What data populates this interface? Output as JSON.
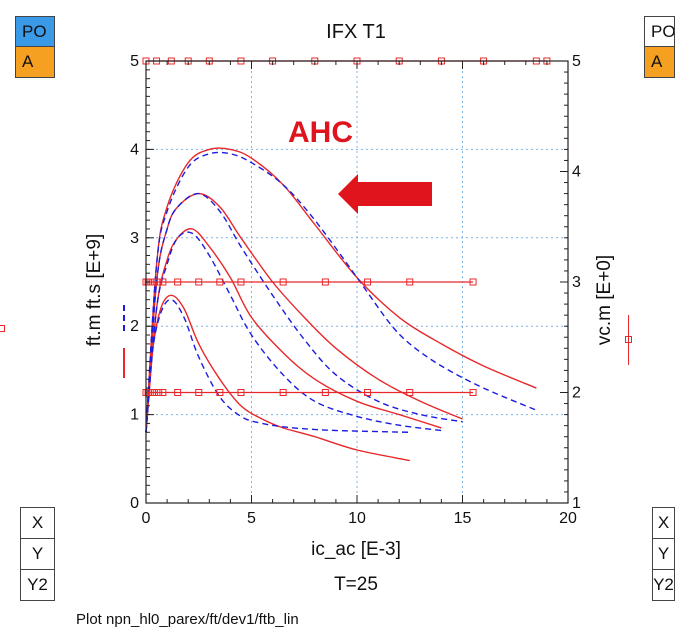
{
  "side_left": {
    "po_label": "PO",
    "a_label": "A",
    "x_label": "X",
    "y_label": "Y",
    "y2_label": "Y2"
  },
  "side_right": {
    "po_label": "PO",
    "a_label": "A",
    "x_label": "X",
    "y_label": "Y",
    "y2_label": "Y2"
  },
  "colors": {
    "po_bg": "#3b9ae8",
    "a_bg": "#f5a020",
    "red": "#e8282a",
    "blue": "#1c1ce0",
    "grid": "#7fb2e6",
    "arrow": "#e0141c"
  },
  "footer": {
    "plot_path": "Plot npn_hl0_parex/ft/dev1/ftb_lin"
  },
  "chart_data": {
    "type": "line",
    "title": "IFX  T1",
    "xlabel": "ic_ac  [E-3]",
    "subtitle": "T=25",
    "ylabel_left": "ft.m  ft.s  [E+9]",
    "ylabel_right": "vc.m  [E+0]",
    "xlim": [
      0,
      20
    ],
    "ylim_left": [
      0,
      5
    ],
    "ylim_right": [
      1,
      5
    ],
    "xticks": [
      "0",
      "5",
      "10",
      "15",
      "20"
    ],
    "yticks_left": [
      "0",
      "1",
      "2",
      "3",
      "4",
      "5"
    ],
    "yticks_right": [
      "1",
      "2",
      "3",
      "4",
      "5"
    ],
    "annotation": "AHC",
    "grid": true,
    "series": [
      {
        "group": "ft.m",
        "style": "solid-red",
        "x": [
          0,
          0.3,
          0.7,
          1.2,
          1.8,
          2.5,
          3.5,
          4.5,
          5.5,
          6.5,
          8,
          10,
          12.5
        ],
        "y": [
          0.8,
          1.7,
          2.2,
          2.35,
          2.2,
          1.8,
          1.4,
          1.1,
          0.95,
          0.85,
          0.75,
          0.6,
          0.48
        ]
      },
      {
        "group": "ft.m",
        "style": "solid-red",
        "x": [
          0,
          0.5,
          1,
          1.5,
          2.2,
          3,
          4,
          5,
          6.5,
          8,
          10,
          12,
          14
        ],
        "y": [
          0.8,
          2.2,
          2.75,
          3.0,
          3.1,
          2.9,
          2.55,
          2.1,
          1.7,
          1.4,
          1.15,
          1.0,
          0.85
        ]
      },
      {
        "group": "ft.m",
        "style": "solid-red",
        "x": [
          0,
          0.5,
          1,
          1.5,
          2.5,
          3.5,
          4.5,
          6,
          7.5,
          9,
          11,
          13,
          15
        ],
        "y": [
          0.8,
          2.5,
          3.1,
          3.35,
          3.5,
          3.35,
          3.0,
          2.5,
          2.1,
          1.75,
          1.4,
          1.15,
          0.95
        ]
      },
      {
        "group": "ft.m",
        "style": "solid-red",
        "x": [
          0,
          0.5,
          1,
          2,
          3,
          4,
          5,
          6.5,
          8,
          10,
          12,
          14,
          16,
          18.5
        ],
        "y": [
          0.8,
          2.7,
          3.35,
          3.85,
          4.0,
          4.0,
          3.9,
          3.6,
          3.15,
          2.55,
          2.1,
          1.8,
          1.55,
          1.3
        ]
      },
      {
        "group": "ft.s",
        "style": "dashed-blue",
        "x": [
          0,
          0.3,
          0.7,
          1.2,
          1.8,
          2.5,
          3.5,
          4.5,
          5.5,
          7,
          9,
          12.5
        ],
        "y": [
          0.8,
          1.7,
          2.15,
          2.3,
          2.1,
          1.65,
          1.2,
          0.98,
          0.9,
          0.85,
          0.82,
          0.8
        ]
      },
      {
        "group": "ft.s",
        "style": "dashed-blue",
        "x": [
          0,
          0.5,
          1,
          1.5,
          2.2,
          3,
          4,
          5,
          6.5,
          8,
          10,
          12,
          14
        ],
        "y": [
          0.8,
          2.2,
          2.7,
          3.0,
          3.05,
          2.8,
          2.35,
          1.9,
          1.45,
          1.15,
          0.98,
          0.88,
          0.82
        ]
      },
      {
        "group": "ft.s",
        "style": "dashed-blue",
        "x": [
          0,
          0.5,
          1,
          1.5,
          2.5,
          3.5,
          4.5,
          6,
          7.5,
          9,
          11,
          13,
          15
        ],
        "y": [
          0.8,
          2.5,
          3.1,
          3.35,
          3.5,
          3.3,
          2.9,
          2.35,
          1.85,
          1.45,
          1.15,
          1.0,
          0.92
        ]
      },
      {
        "group": "ft.s",
        "style": "dashed-blue",
        "x": [
          0,
          0.5,
          1,
          2,
          3,
          4,
          5,
          6.5,
          8,
          10,
          11.5,
          12.5,
          14,
          16,
          18.5
        ],
        "y": [
          0.8,
          2.7,
          3.3,
          3.8,
          3.95,
          3.95,
          3.85,
          3.6,
          3.2,
          2.55,
          2.05,
          1.8,
          1.55,
          1.3,
          1.05
        ]
      },
      {
        "group": "vc.m",
        "style": "marker-red",
        "axis": "right",
        "x": [
          0,
          0.1,
          0.2,
          0.3,
          0.4,
          0.6,
          0.8,
          1.5,
          2.5,
          3.5,
          4.5,
          6.5,
          8.5,
          10.5,
          12.5,
          15.5
        ],
        "y": [
          3,
          3,
          3,
          3,
          3,
          3,
          3,
          3,
          3,
          3,
          3,
          3,
          3,
          3,
          3,
          3
        ]
      },
      {
        "group": "vc.m",
        "style": "marker-red",
        "axis": "right",
        "x": [
          0,
          0.1,
          0.2,
          0.3,
          0.4,
          0.6,
          0.8,
          1.5,
          2.5,
          3.5,
          4.5,
          6.5,
          8.5,
          10.5,
          12.5,
          15.5
        ],
        "y": [
          2,
          2,
          2,
          2,
          2,
          2,
          2,
          2,
          2,
          2,
          2,
          2,
          2,
          2,
          2,
          2
        ]
      },
      {
        "group": "vc.m",
        "style": "marker-red",
        "axis": "right",
        "x": [
          0,
          0.5,
          1.2,
          2,
          3,
          4.5,
          6,
          8,
          10,
          12,
          14,
          16,
          18.5,
          19
        ],
        "y": [
          5,
          5,
          5,
          5,
          5,
          5,
          5,
          5,
          5,
          5,
          5,
          5,
          5,
          5
        ]
      }
    ]
  }
}
